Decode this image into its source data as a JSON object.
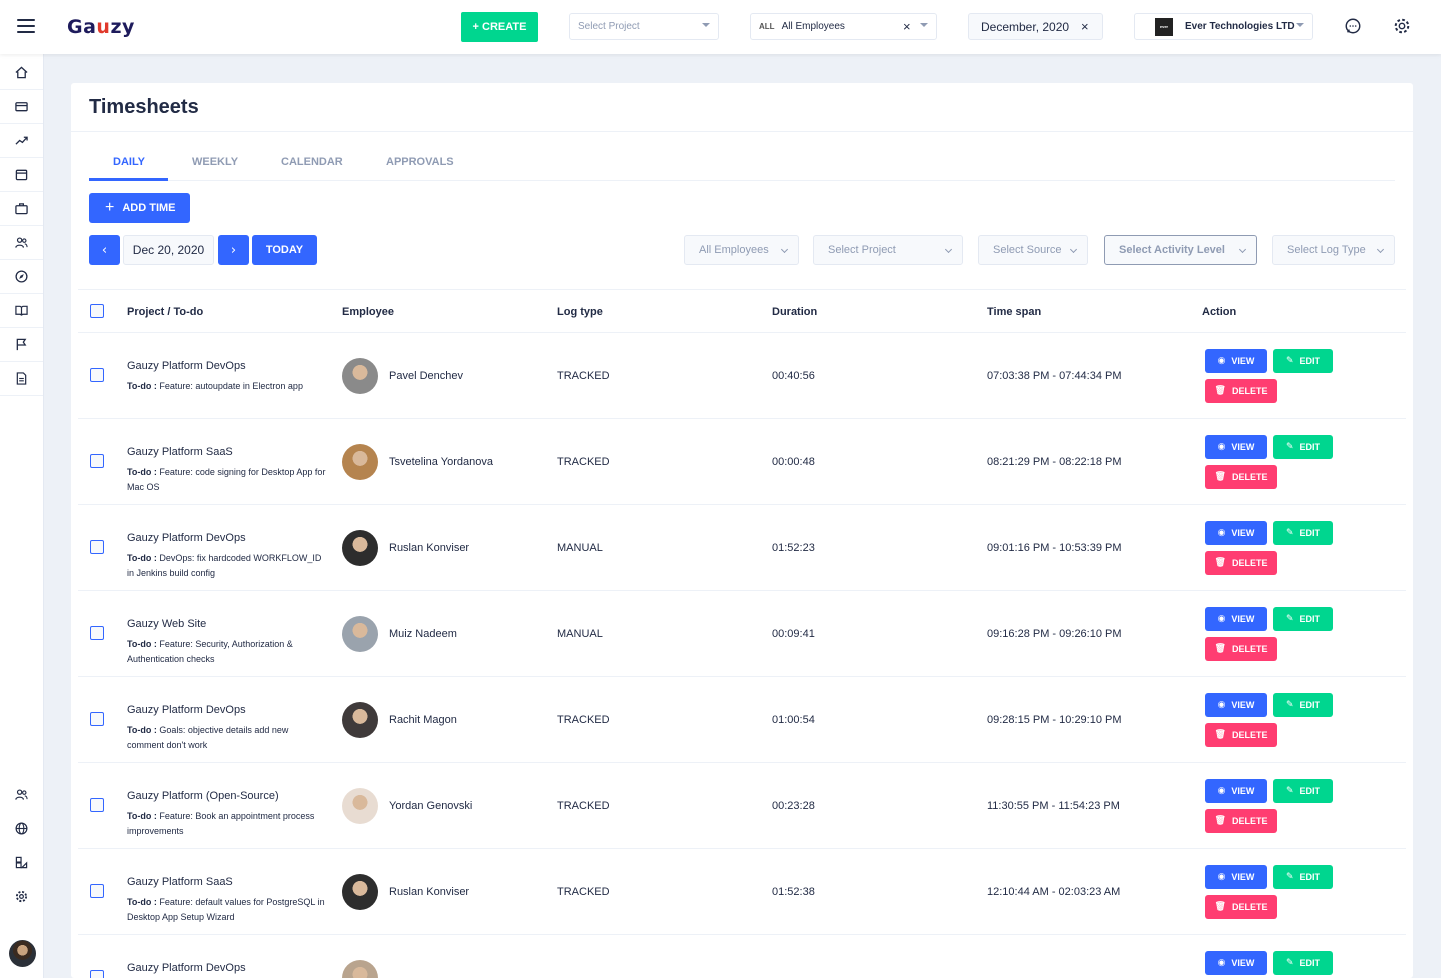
{
  "header": {
    "logo_prefix": "Ga",
    "logo_mid": "u",
    "logo_suffix": "zy",
    "create_label": "+ CREATE",
    "project_placeholder": "Select Project",
    "employee_all_tag": "ALL",
    "employee_value": "All Employees",
    "date_value": "December, 2020",
    "organization_value": "Ever Technologies LTD",
    "organization_logo_text": "ever"
  },
  "page": {
    "title": "Timesheets",
    "tabs": [
      {
        "label": "DAILY",
        "active": true
      },
      {
        "label": "WEEKLY",
        "active": false
      },
      {
        "label": "CALENDAR",
        "active": false
      },
      {
        "label": "APPROVALS",
        "active": false
      }
    ],
    "add_time_label": "ADD TIME",
    "prev_glyph": "‹",
    "next_glyph": "›",
    "current_date": "Dec 20, 2020",
    "today_label": "TODAY",
    "filters": {
      "employees": "All Employees",
      "project": "Select Project",
      "source": "Select Source",
      "activity": "Select Activity Level",
      "log_type": "Select Log Type"
    }
  },
  "table": {
    "columns": {
      "project": "Project / To-do",
      "employee": "Employee",
      "log_type": "Log type",
      "duration": "Duration",
      "time_span": "Time span",
      "action": "Action"
    },
    "todo_prefix": "To-do :",
    "actions": {
      "view": "VIEW",
      "edit": "EDIT",
      "delete": "DELETE"
    },
    "rows": [
      {
        "project": "Gauzy Platform DevOps",
        "todo": "Feature: autoupdate in Electron app",
        "employee": "Pavel Denchev",
        "log_type": "TRACKED",
        "duration": "00:40:56",
        "time_span": "07:03:38 PM - 07:44:34 PM",
        "avatar_color": "#8a8a8a"
      },
      {
        "project": "Gauzy Platform SaaS",
        "todo": "Feature: code signing for Desktop App for Mac OS",
        "employee": "Tsvetelina Yordanova",
        "log_type": "TRACKED",
        "duration": "00:00:48",
        "time_span": "08:21:29 PM - 08:22:18 PM",
        "avatar_color": "#b5844f"
      },
      {
        "project": "Gauzy Platform DevOps",
        "todo": "DevOps: fix hardcoded WORKFLOW_ID in Jenkins build config",
        "employee": "Ruslan Konviser",
        "log_type": "MANUAL",
        "duration": "01:52:23",
        "time_span": "09:01:16 PM - 10:53:39 PM",
        "avatar_color": "#2d2d2d"
      },
      {
        "project": "Gauzy Web Site",
        "todo": "Feature: Security, Authorization & Authentication checks",
        "employee": "Muiz Nadeem",
        "log_type": "MANUAL",
        "duration": "00:09:41",
        "time_span": "09:16:28 PM - 09:26:10 PM",
        "avatar_color": "#9aa3ad"
      },
      {
        "project": "Gauzy Platform DevOps",
        "todo": "Goals: objective details add new comment don't work",
        "employee": "Rachit Magon",
        "log_type": "TRACKED",
        "duration": "01:00:54",
        "time_span": "09:28:15 PM - 10:29:10 PM",
        "avatar_color": "#3f3a3a"
      },
      {
        "project": "Gauzy Platform (Open-Source)",
        "todo": "Feature: Book an appointment process improvements",
        "employee": "Yordan Genovski",
        "log_type": "TRACKED",
        "duration": "00:23:28",
        "time_span": "11:30:55 PM - 11:54:23 PM",
        "avatar_color": "#e8dcd2"
      },
      {
        "project": "Gauzy Platform SaaS",
        "todo": "Feature: default values for PostgreSQL in Desktop App Setup Wizard",
        "employee": "Ruslan Konviser",
        "log_type": "TRACKED",
        "duration": "01:52:38",
        "time_span": "12:10:44 AM - 02:03:23 AM",
        "avatar_color": "#2d2d2d"
      },
      {
        "project": "Gauzy Platform DevOps",
        "todo": "",
        "employee": "",
        "log_type": "",
        "duration": "",
        "time_span": "",
        "avatar_color": "#b9a48e"
      }
    ]
  }
}
